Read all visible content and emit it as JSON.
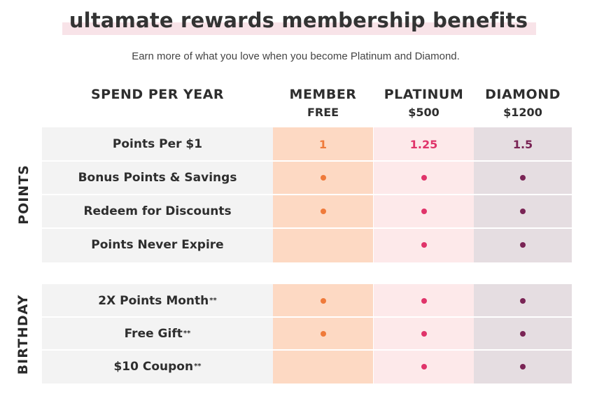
{
  "title": "ultamate rewards membership benefits",
  "subtitle": "Earn more of what you love when you become Platinum and Diamond.",
  "headers": {
    "spend": "SPEND PER YEAR",
    "member": {
      "name": "MEMBER",
      "price": "FREE"
    },
    "platinum": {
      "name": "PLATINUM",
      "price": "$500"
    },
    "diamond": {
      "name": "DIAMOND",
      "price": "$1200"
    }
  },
  "groups": {
    "points": {
      "label": "POINTS",
      "rows": [
        {
          "label": "Points Per $1",
          "footnote": "",
          "member": "1",
          "platinum": "1.25",
          "diamond": "1.5"
        },
        {
          "label": "Bonus Points & Savings",
          "footnote": "",
          "member": "dot",
          "platinum": "dot",
          "diamond": "dot"
        },
        {
          "label": "Redeem for Discounts",
          "footnote": "",
          "member": "dot",
          "platinum": "dot",
          "diamond": "dot"
        },
        {
          "label": "Points Never Expire",
          "footnote": "",
          "member": "",
          "platinum": "dot",
          "diamond": "dot"
        }
      ]
    },
    "birthday": {
      "label": "BIRTHDAY",
      "rows": [
        {
          "label": "2X Points Month",
          "footnote": "**",
          "member": "dot",
          "platinum": "dot",
          "diamond": "dot"
        },
        {
          "label": "Free Gift",
          "footnote": "**",
          "member": "dot",
          "platinum": "dot",
          "diamond": "dot"
        },
        {
          "label": "$10 Coupon",
          "footnote": "**",
          "member": "",
          "platinum": "dot",
          "diamond": "dot"
        }
      ]
    }
  },
  "colors": {
    "member": "#ef7a3a",
    "platinum": "#e0346a",
    "diamond": "#7a2455"
  }
}
